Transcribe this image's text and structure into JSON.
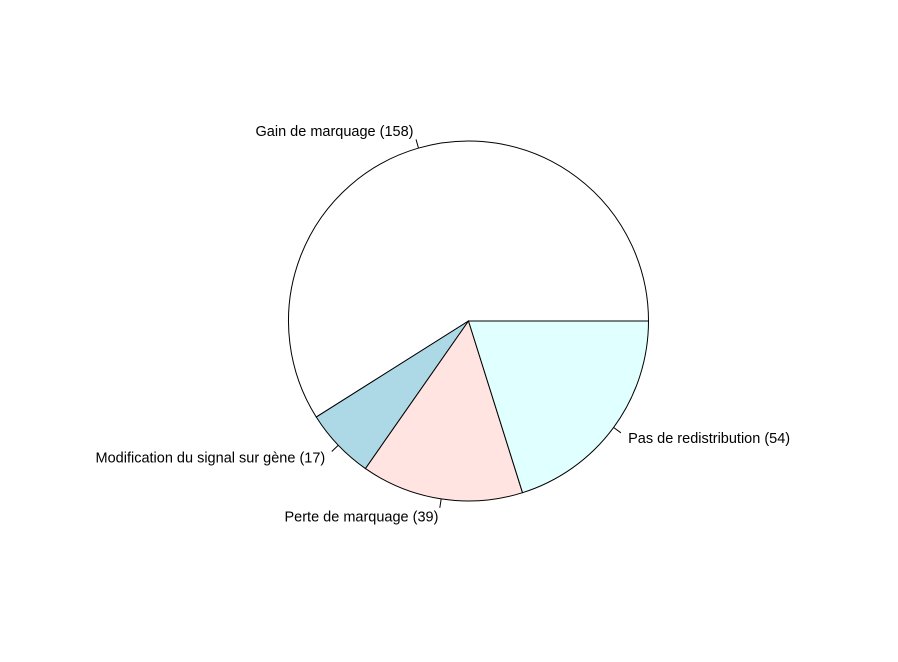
{
  "chart_data": {
    "type": "pie",
    "title": "",
    "clockwise": false,
    "start_angle_deg": 0,
    "border_color": "#000000",
    "slices": [
      {
        "label": "Gain de marquage (158)",
        "value": 158,
        "color": "#ffffff"
      },
      {
        "label": "Modification du signal sur gène (17)",
        "value": 17,
        "color": "#add8e6"
      },
      {
        "label": "Perte de marquage (39)",
        "value": 39,
        "color": "#ffe4e1"
      },
      {
        "label": "Pas de redistribution (54)",
        "value": 54,
        "color": "#e0ffff"
      }
    ]
  }
}
